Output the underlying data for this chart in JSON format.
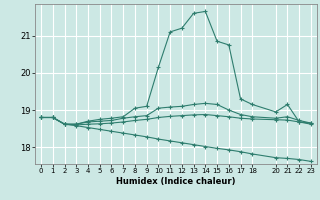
{
  "title": "",
  "xlabel": "Humidex (Indice chaleur)",
  "ylabel": "",
  "bg_color": "#cce8e4",
  "grid_color": "#ffffff",
  "line_color": "#2e7d6e",
  "xlim": [
    -0.5,
    23.5
  ],
  "ylim": [
    17.55,
    21.85
  ],
  "yticks": [
    18,
    19,
    20,
    21
  ],
  "xticks": [
    0,
    1,
    2,
    3,
    4,
    5,
    6,
    7,
    8,
    9,
    10,
    11,
    12,
    13,
    14,
    15,
    16,
    17,
    18,
    20,
    21,
    22,
    23
  ],
  "series": [
    {
      "x": [
        0,
        1,
        2,
        3,
        4,
        5,
        6,
        7,
        8,
        9,
        10,
        11,
        12,
        13,
        14,
        15,
        16,
        17,
        18,
        20,
        21,
        22,
        23
      ],
      "y": [
        18.8,
        18.8,
        18.62,
        18.62,
        18.7,
        18.75,
        18.78,
        18.82,
        19.05,
        19.1,
        20.15,
        21.1,
        21.2,
        21.6,
        21.65,
        20.85,
        20.75,
        19.3,
        19.15,
        18.95,
        19.15,
        18.68,
        18.65
      ]
    },
    {
      "x": [
        0,
        1,
        2,
        3,
        4,
        5,
        6,
        7,
        8,
        9,
        10,
        11,
        12,
        13,
        14,
        15,
        16,
        17,
        18,
        20,
        21,
        22,
        23
      ],
      "y": [
        18.8,
        18.8,
        18.62,
        18.62,
        18.68,
        18.7,
        18.72,
        18.78,
        18.82,
        18.85,
        19.05,
        19.08,
        19.1,
        19.15,
        19.18,
        19.15,
        19.0,
        18.88,
        18.82,
        18.78,
        18.82,
        18.72,
        18.65
      ]
    },
    {
      "x": [
        0,
        1,
        2,
        3,
        4,
        5,
        6,
        7,
        8,
        9,
        10,
        11,
        12,
        13,
        14,
        15,
        16,
        17,
        18,
        20,
        21,
        22,
        23
      ],
      "y": [
        18.8,
        18.8,
        18.62,
        18.6,
        18.62,
        18.63,
        18.65,
        18.68,
        18.72,
        18.75,
        18.8,
        18.83,
        18.85,
        18.87,
        18.88,
        18.85,
        18.82,
        18.78,
        18.76,
        18.74,
        18.73,
        18.68,
        18.62
      ]
    },
    {
      "x": [
        0,
        1,
        2,
        3,
        4,
        5,
        6,
        7,
        8,
        9,
        10,
        11,
        12,
        13,
        14,
        15,
        16,
        17,
        18,
        20,
        21,
        22,
        23
      ],
      "y": [
        18.8,
        18.8,
        18.62,
        18.58,
        18.53,
        18.48,
        18.43,
        18.38,
        18.33,
        18.28,
        18.22,
        18.17,
        18.12,
        18.07,
        18.02,
        17.97,
        17.93,
        17.88,
        17.82,
        17.72,
        17.7,
        17.67,
        17.62
      ]
    }
  ]
}
